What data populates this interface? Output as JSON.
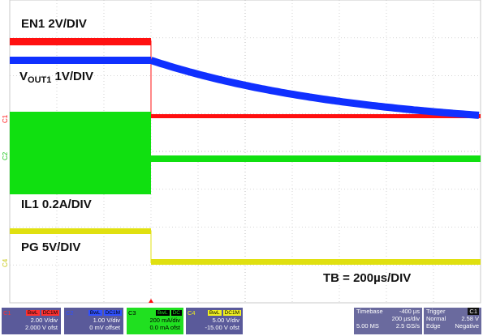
{
  "colors": {
    "ch1": "#ff1010",
    "ch2": "#1030ff",
    "ch3": "#10e010",
    "ch4": "#e0e010",
    "grid": "#c8c8c8",
    "background": "#ffffff"
  },
  "traces": {
    "ch1_label": "EN1 2V/DIV",
    "ch2_label_main": "V",
    "ch2_label_sub": "OUT1",
    "ch2_label_rest": " 1V/DIV",
    "ch3_label": "IL1 0.2A/DIV",
    "ch4_label": "PG 5V/DIV",
    "timebase_note": "TB = 200µs/DIV"
  },
  "channel_markers": {
    "c1": "C1",
    "c2": "C2",
    "c4": "C4"
  },
  "channels": [
    {
      "id": "C1",
      "tag1": "BwL",
      "tag2": "DC1M",
      "vdiv": "2.00 V/div",
      "offset": "2.000 V ofst"
    },
    {
      "id": "C2",
      "tag1": "BwL",
      "tag2": "DC1M",
      "vdiv": "1.00 V/div",
      "offset": "0 mV offset"
    },
    {
      "id": "C3",
      "tag1": "BwL",
      "tag2": "DC",
      "vdiv": "200 mA/div",
      "offset": "0.0 mA ofst"
    },
    {
      "id": "C4",
      "tag1": "BwL",
      "tag2": "DC1M",
      "vdiv": "5.00 V/div",
      "offset": "-15.00 V ofst"
    }
  ],
  "timebase": {
    "title": "Timebase",
    "delay": "-400 µs",
    "per_div": "200 µs/div",
    "samples": "5.00 MS",
    "rate": "2.5 GS/s"
  },
  "trigger": {
    "title": "Trigger",
    "channel": "C1",
    "mode": "Normal",
    "level": "2.58 V",
    "type": "Edge",
    "slope": "Negative"
  }
}
